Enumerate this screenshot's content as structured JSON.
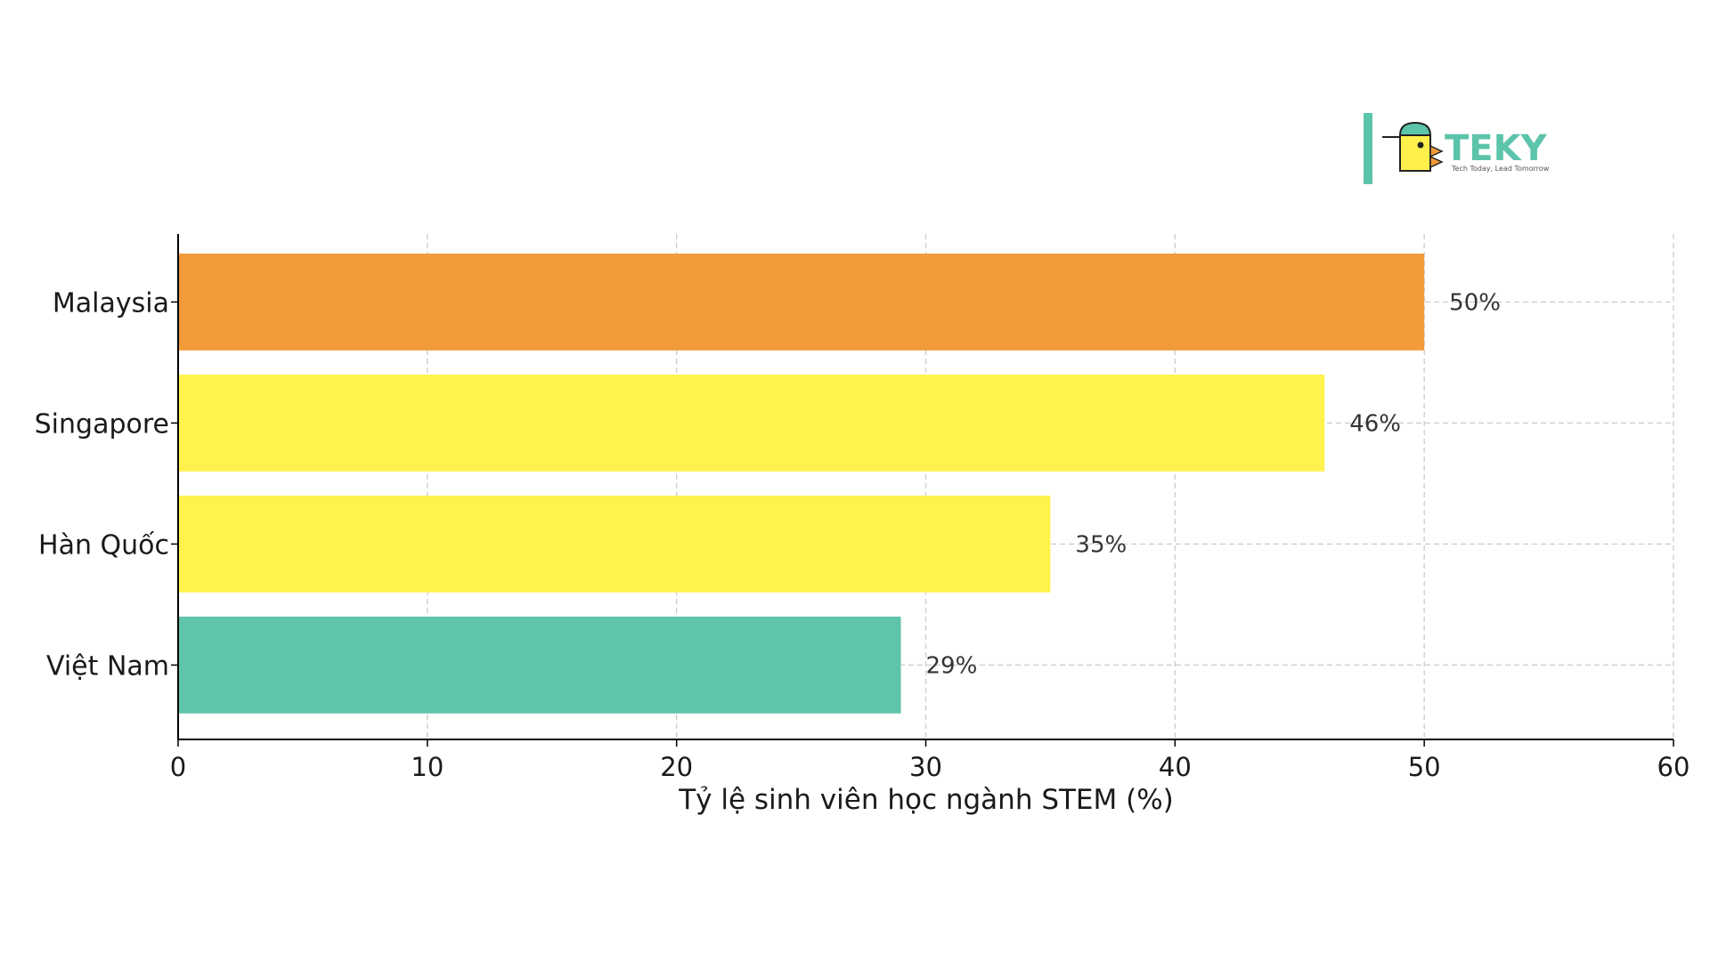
{
  "logo": {
    "brand": "TEKY",
    "tagline": "Tech Today, Lead Tomorrow",
    "color": "#5cc4ab",
    "bird_body_color": "#fff04c",
    "bird_beak_color": "#f29a3a"
  },
  "chart_data": {
    "type": "bar",
    "orientation": "horizontal",
    "categories": [
      "Malaysia",
      "Singapore",
      "Hàn Quốc",
      "Việt Nam"
    ],
    "values": [
      50,
      46,
      35,
      29
    ],
    "value_labels": [
      "50%",
      "46%",
      "35%",
      "29%"
    ],
    "colors": [
      "#f29b3a",
      "#fff24d",
      "#fff24d",
      "#5fc4ac"
    ],
    "xlabel": "Tỷ lệ sinh viên học ngành STEM (%)",
    "ylabel": "",
    "title": "",
    "xlim": [
      0,
      60
    ],
    "xticks": [
      0,
      10,
      20,
      30,
      40,
      50,
      60
    ],
    "xtick_labels": [
      "0",
      "10",
      "20",
      "30",
      "40",
      "50",
      "60"
    ],
    "grid": true
  }
}
